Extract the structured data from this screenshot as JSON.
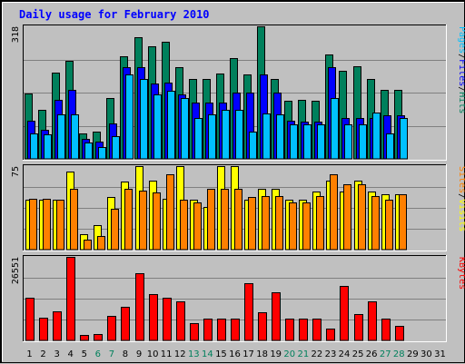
{
  "chart_data": {
    "type": "bar",
    "title": "Daily usage for February 2010",
    "days": [
      "1",
      "2",
      "3",
      "4",
      "5",
      "6",
      "7",
      "8",
      "9",
      "10",
      "11",
      "12",
      "13",
      "14",
      "15",
      "16",
      "17",
      "18",
      "19",
      "20",
      "21",
      "22",
      "23",
      "24",
      "25",
      "26",
      "27",
      "28",
      "29",
      "30",
      "31"
    ],
    "weekend_days": [
      6,
      7,
      13,
      14,
      20,
      21,
      27,
      28
    ],
    "colors": {
      "title": "#0000ff",
      "hits": "#00805c",
      "files": "#0000ff",
      "pages": "#00c0ff",
      "visits": "#ffff00",
      "sites": "#ff8000",
      "kbytes": "#ff0000",
      "weekday_label": "#000000",
      "weekend_label": "#00805c",
      "grid": "#808080",
      "panel_bg": "#c0c0c0"
    },
    "panels": [
      {
        "id": "hits-panel",
        "max_label": "318",
        "ymax": 318,
        "legend": [
          {
            "text": "Hits",
            "color": "#00805c"
          },
          {
            "text": "/",
            "color": "#000000"
          },
          {
            "text": "Files",
            "color": "#0000ff"
          },
          {
            "text": "/",
            "color": "#000000"
          },
          {
            "text": "Pages",
            "color": "#00c0ff"
          }
        ],
        "series": [
          {
            "name": "Hits",
            "color": "#00805c",
            "values": [
              156,
              118,
              208,
              235,
              62,
              65,
              147,
              246,
              292,
              269,
              281,
              219,
              192,
              192,
              205,
              241,
              202,
              318,
              192,
              139,
              141,
              139,
              251,
              212,
              222,
              192,
              165,
              165,
              null,
              null,
              null
            ]
          },
          {
            "name": "Files",
            "color": "#0000ff",
            "values": [
              91,
              70,
              141,
              165,
              49,
              42,
              84,
              219,
              219,
              181,
              184,
              154,
              134,
              134,
              134,
              160,
              160,
              203,
              160,
              91,
              89,
              89,
              219,
              98,
              98,
              98,
              104,
              104,
              null,
              null,
              null
            ]
          },
          {
            "name": "Pages",
            "color": "#00c0ff",
            "values": [
              62,
              58,
              106,
              106,
              39,
              28,
              54,
              203,
              192,
              154,
              164,
              146,
              98,
              106,
              118,
              118,
              65,
              108,
              106,
              82,
              82,
              82,
              146,
              82,
              82,
              112,
              62,
              98,
              null,
              null,
              null
            ]
          }
        ]
      },
      {
        "id": "visits-panel",
        "max_label": "75",
        "ymax": 75,
        "legend": [
          {
            "text": "Visits",
            "color": "#ffff00"
          },
          {
            "text": "/",
            "color": "#000000"
          },
          {
            "text": "Sites",
            "color": "#ff8000"
          }
        ],
        "series": [
          {
            "name": "Visits",
            "color": "#ffff00",
            "values": [
              45,
              45,
              45,
              70,
              14,
              22,
              47,
              61,
              75,
              62,
              46,
              75,
              45,
              38,
              75,
              75,
              45,
              55,
              55,
              45,
              45,
              52,
              62,
              52,
              62,
              52,
              50,
              50,
              null,
              null,
              null
            ]
          },
          {
            "name": "Sites",
            "color": "#ff8000",
            "values": [
              46,
              46,
              45,
              55,
              9,
              12,
              37,
              55,
              53,
              51,
              68,
              45,
              42,
              55,
              55,
              55,
              47,
              48,
              48,
              42,
              42,
              48,
              68,
              59,
              59,
              48,
              45,
              50,
              null,
              null,
              null
            ]
          }
        ]
      },
      {
        "id": "kbytes-panel",
        "max_label": "26551",
        "ymax": 26551,
        "legend": [
          {
            "text": "KBytes",
            "color": "#ff0000"
          }
        ],
        "series": [
          {
            "name": "KBytes",
            "color": "#ff0000",
            "values": [
              13500,
              7300,
              9300,
              26551,
              1600,
              1900,
              7900,
              10600,
              21500,
              14700,
              13500,
              12300,
              5600,
              6900,
              6900,
              6900,
              18300,
              9000,
              15200,
              7000,
              7000,
              7000,
              3800,
              17300,
              8300,
              12300,
              7000,
              4600,
              null,
              null,
              null
            ]
          }
        ]
      }
    ]
  }
}
